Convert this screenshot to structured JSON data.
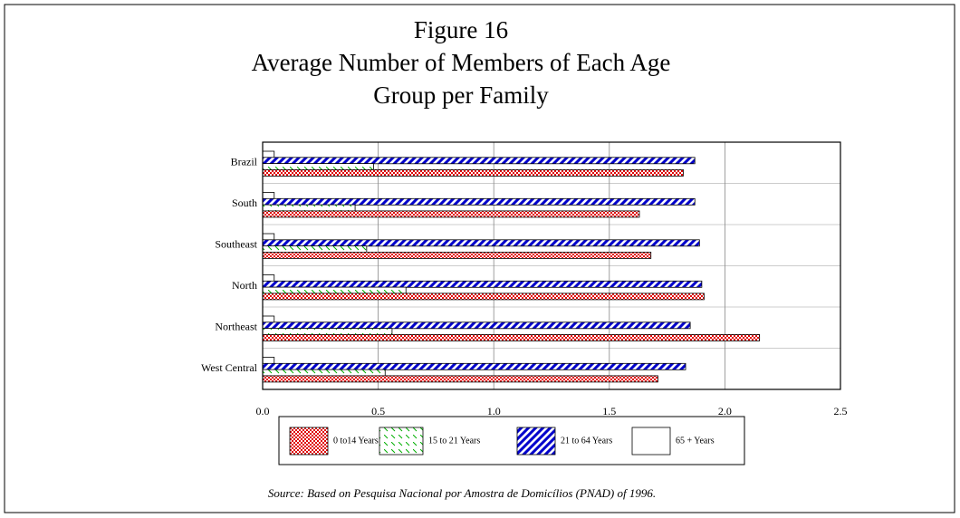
{
  "chart_data": {
    "type": "barh",
    "title": [
      "Figure 16",
      "Average Number of Members of Each Age",
      "Group per Family"
    ],
    "source": "Source: Based on Pesquisa Nacional por Amostra de Domicílios (PNAD) of 1996.",
    "categories": [
      "Brazil",
      "South",
      "Southeast",
      "North",
      "Northeast",
      "West Central"
    ],
    "series": [
      {
        "name": "0 to14 Years",
        "color": "#e00000",
        "values": [
          1.82,
          1.63,
          1.68,
          1.91,
          2.15,
          1.71
        ]
      },
      {
        "name": "15 to 21 Years",
        "color": "#00b000",
        "values": [
          0.48,
          0.4,
          0.45,
          0.62,
          0.56,
          0.53
        ]
      },
      {
        "name": "21 to 64 Years",
        "color": "#0000cc",
        "values": [
          1.87,
          1.87,
          1.89,
          1.9,
          1.85,
          1.83
        ]
      },
      {
        "name": "65 + Years",
        "color": "#ffffff",
        "values": [
          0.05,
          0.05,
          0.05,
          0.05,
          0.05,
          0.05
        ]
      }
    ],
    "xlim": [
      0,
      2.5
    ],
    "xticks": [
      {
        "value": 0,
        "label": "0.0"
      },
      0.5,
      {
        "value": 1,
        "label": "1.0"
      },
      1.5,
      {
        "value": 2,
        "label": "2.0"
      },
      2.5
    ],
    "grid": true,
    "legend": "bottom"
  }
}
